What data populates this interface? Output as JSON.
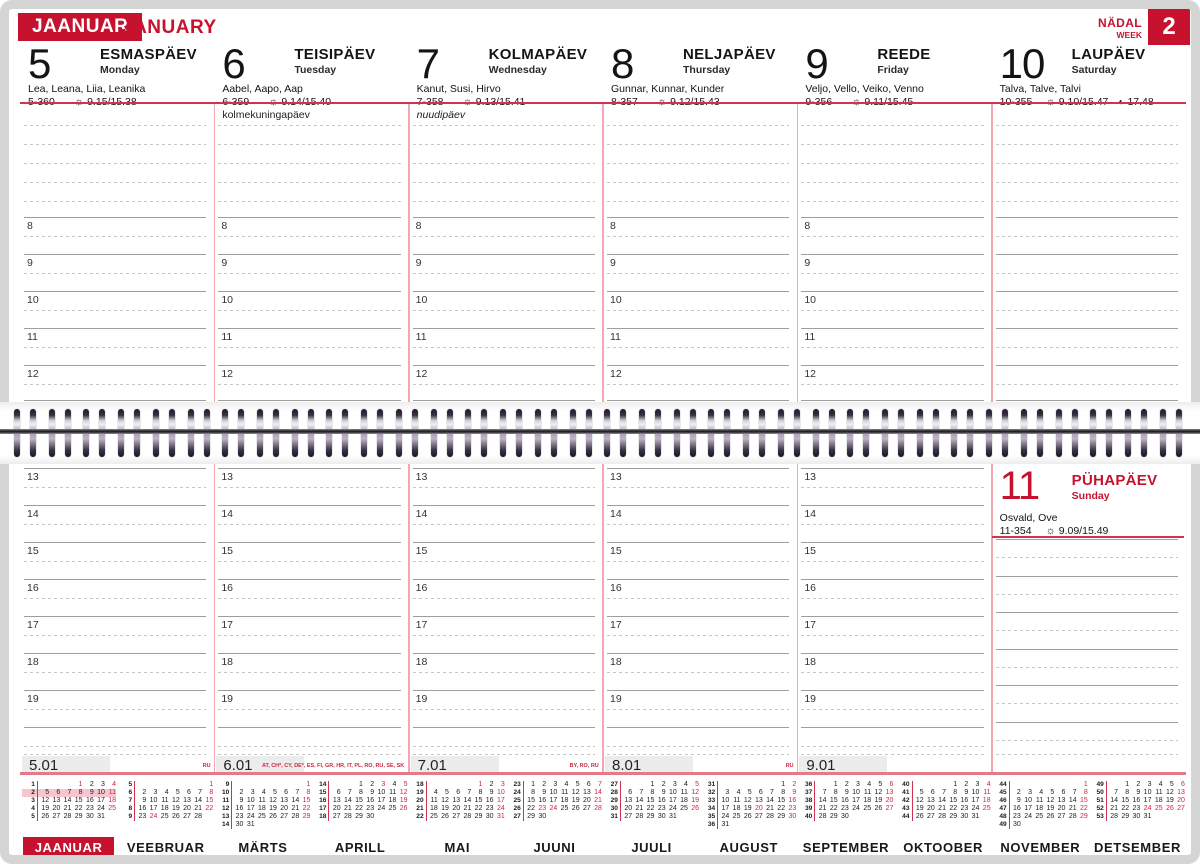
{
  "header": {
    "month_et": "JAANUAR",
    "month_en": "JANUARY",
    "week_label_et": "NÄDAL",
    "week_label_en": "WEEK",
    "week_number": "2"
  },
  "hours_top": [
    "8",
    "9",
    "10",
    "11",
    "12"
  ],
  "hours_bottom": [
    "13",
    "14",
    "15",
    "16",
    "17",
    "18",
    "19"
  ],
  "week_days": [
    {
      "num": "5",
      "name_et": "ESMASPÄEV",
      "name_en": "Monday",
      "namedays": "Lea, Leana, Liia, Leanika",
      "day_of_year": "5-360",
      "sun_times": "9.15/15.38"
    },
    {
      "num": "6",
      "name_et": "TEISIPÄEV",
      "name_en": "Tuesday",
      "namedays": "Aabel, Aapo, Aap",
      "day_of_year": "6-359",
      "sun_times": "9.14/15.40",
      "note": "kolmekuningapäev",
      "note_italic": false
    },
    {
      "num": "7",
      "name_et": "KOLMAPÄEV",
      "name_en": "Wednesday",
      "namedays": "Kanut, Susi, Hirvo",
      "day_of_year": "7-358",
      "sun_times": "9.13/15.41",
      "note": "nuudipäev",
      "note_italic": true
    },
    {
      "num": "8",
      "name_et": "NELJAPÄEV",
      "name_en": "Thursday",
      "namedays": "Gunnar, Kunnar, Kunder",
      "day_of_year": "8-357",
      "sun_times": "9.12/15.43"
    },
    {
      "num": "9",
      "name_et": "REEDE",
      "name_en": "Friday",
      "namedays": "Veljo, Vello, Veiko, Venno",
      "day_of_year": "9-356",
      "sun_times": "9.11/15.45"
    },
    {
      "num": "10",
      "name_et": "LAUPÄEV",
      "name_en": "Saturday",
      "namedays": "Talva, Talve, Talvi",
      "day_of_year": "10-355",
      "sun_times": "9.10/15.47",
      "moon_time": "17.48"
    }
  ],
  "sunday_day": {
    "num": "11",
    "name_et": "PÜHAPÄEV",
    "name_en": "Sunday",
    "namedays": "Osvald, Ove",
    "day_of_year": "11-354",
    "sun_times": "9.09/15.49"
  },
  "footer_entries": [
    {
      "date": "5.01",
      "flags": "RU"
    },
    {
      "date": "6.01",
      "flags": "AT, CH*, CY, DE*, ES, FI, GR, HR, IT, PL, RO, RU, SE, SK"
    },
    {
      "date": "7.01",
      "flags": "BY, RO, RU"
    },
    {
      "date": "8.01",
      "flags": "RU"
    },
    {
      "date": "9.01",
      "flags": ""
    }
  ],
  "mini_months": [
    {
      "name": "JAANUAR",
      "current": true,
      "highlight_week": "2",
      "holidays": [
        1
      ],
      "weeks": [
        {
          "n": "1",
          "days": [
            "",
            "",
            "",
            "1",
            "2",
            "3",
            "4"
          ]
        },
        {
          "n": "2",
          "days": [
            "5",
            "6",
            "7",
            "8",
            "9",
            "10",
            "11"
          ]
        },
        {
          "n": "3",
          "days": [
            "12",
            "13",
            "14",
            "15",
            "16",
            "17",
            "18"
          ]
        },
        {
          "n": "4",
          "days": [
            "19",
            "20",
            "21",
            "22",
            "23",
            "24",
            "25"
          ]
        },
        {
          "n": "5",
          "days": [
            "26",
            "27",
            "28",
            "29",
            "30",
            "31",
            ""
          ]
        }
      ]
    },
    {
      "name": "VEEBRUAR",
      "holidays": [
        24
      ],
      "weeks": [
        {
          "n": "5",
          "days": [
            "",
            "",
            "",
            "",
            "",
            "",
            "1"
          ]
        },
        {
          "n": "6",
          "days": [
            "2",
            "3",
            "4",
            "5",
            "6",
            "7",
            "8"
          ]
        },
        {
          "n": "7",
          "days": [
            "9",
            "10",
            "11",
            "12",
            "13",
            "14",
            "15"
          ]
        },
        {
          "n": "8",
          "days": [
            "16",
            "17",
            "18",
            "19",
            "20",
            "21",
            "22"
          ]
        },
        {
          "n": "9",
          "days": [
            "23",
            "24",
            "25",
            "26",
            "27",
            "28",
            ""
          ]
        }
      ]
    },
    {
      "name": "MÄRTS",
      "holidays": [],
      "weeks": [
        {
          "n": "9",
          "days": [
            "",
            "",
            "",
            "",
            "",
            "",
            "1"
          ]
        },
        {
          "n": "10",
          "days": [
            "2",
            "3",
            "4",
            "5",
            "6",
            "7",
            "8"
          ]
        },
        {
          "n": "11",
          "days": [
            "9",
            "10",
            "11",
            "12",
            "13",
            "14",
            "15"
          ]
        },
        {
          "n": "12",
          "days": [
            "16",
            "17",
            "18",
            "19",
            "20",
            "21",
            "22"
          ]
        },
        {
          "n": "13",
          "days": [
            "23",
            "24",
            "25",
            "26",
            "27",
            "28",
            "29"
          ]
        },
        {
          "n": "14",
          "days": [
            "30",
            "31",
            "",
            "",
            "",
            "",
            ""
          ]
        }
      ]
    },
    {
      "name": "APRILL",
      "holidays": [
        3
      ],
      "weeks": [
        {
          "n": "14",
          "days": [
            "",
            "",
            "1",
            "2",
            "3",
            "4",
            "5"
          ]
        },
        {
          "n": "15",
          "days": [
            "6",
            "7",
            "8",
            "9",
            "10",
            "11",
            "12"
          ]
        },
        {
          "n": "16",
          "days": [
            "13",
            "14",
            "15",
            "16",
            "17",
            "18",
            "19"
          ]
        },
        {
          "n": "17",
          "days": [
            "20",
            "21",
            "22",
            "23",
            "24",
            "25",
            "26"
          ]
        },
        {
          "n": "18",
          "days": [
            "27",
            "28",
            "29",
            "30",
            "",
            "",
            ""
          ]
        }
      ]
    },
    {
      "name": "MAI",
      "holidays": [
        1
      ],
      "weeks": [
        {
          "n": "18",
          "days": [
            "",
            "",
            "",
            "",
            "1",
            "2",
            "3"
          ]
        },
        {
          "n": "19",
          "days": [
            "4",
            "5",
            "6",
            "7",
            "8",
            "9",
            "10"
          ]
        },
        {
          "n": "20",
          "days": [
            "11",
            "12",
            "13",
            "14",
            "15",
            "16",
            "17"
          ]
        },
        {
          "n": "21",
          "days": [
            "18",
            "19",
            "20",
            "21",
            "22",
            "23",
            "24"
          ]
        },
        {
          "n": "22",
          "days": [
            "25",
            "26",
            "27",
            "28",
            "29",
            "30",
            "31"
          ]
        }
      ]
    },
    {
      "name": "JUUNI",
      "holidays": [
        23,
        24
      ],
      "weeks": [
        {
          "n": "23",
          "days": [
            "1",
            "2",
            "3",
            "4",
            "5",
            "6",
            "7"
          ]
        },
        {
          "n": "24",
          "days": [
            "8",
            "9",
            "10",
            "11",
            "12",
            "13",
            "14"
          ]
        },
        {
          "n": "25",
          "days": [
            "15",
            "16",
            "17",
            "18",
            "19",
            "20",
            "21"
          ]
        },
        {
          "n": "26",
          "days": [
            "22",
            "23",
            "24",
            "25",
            "26",
            "27",
            "28"
          ]
        },
        {
          "n": "27",
          "days": [
            "29",
            "30",
            "",
            "",
            "",
            "",
            ""
          ]
        }
      ]
    },
    {
      "name": "JUULI",
      "holidays": [],
      "weeks": [
        {
          "n": "27",
          "days": [
            "",
            "",
            "1",
            "2",
            "3",
            "4",
            "5"
          ]
        },
        {
          "n": "28",
          "days": [
            "6",
            "7",
            "8",
            "9",
            "10",
            "11",
            "12"
          ]
        },
        {
          "n": "29",
          "days": [
            "13",
            "14",
            "15",
            "16",
            "17",
            "18",
            "19"
          ]
        },
        {
          "n": "30",
          "days": [
            "20",
            "21",
            "22",
            "23",
            "24",
            "25",
            "26"
          ]
        },
        {
          "n": "31",
          "days": [
            "27",
            "28",
            "29",
            "30",
            "31",
            "",
            ""
          ]
        }
      ]
    },
    {
      "name": "AUGUST",
      "holidays": [
        20
      ],
      "weeks": [
        {
          "n": "31",
          "days": [
            "",
            "",
            "",
            "",
            "",
            "1",
            "2"
          ]
        },
        {
          "n": "32",
          "days": [
            "3",
            "4",
            "5",
            "6",
            "7",
            "8",
            "9"
          ]
        },
        {
          "n": "33",
          "days": [
            "10",
            "11",
            "12",
            "13",
            "14",
            "15",
            "16"
          ]
        },
        {
          "n": "34",
          "days": [
            "17",
            "18",
            "19",
            "20",
            "21",
            "22",
            "23"
          ]
        },
        {
          "n": "35",
          "days": [
            "24",
            "25",
            "26",
            "27",
            "28",
            "29",
            "30"
          ]
        },
        {
          "n": "36",
          "days": [
            "31",
            "",
            "",
            "",
            "",
            "",
            ""
          ]
        }
      ]
    },
    {
      "name": "SEPTEMBER",
      "holidays": [],
      "weeks": [
        {
          "n": "36",
          "days": [
            "",
            "1",
            "2",
            "3",
            "4",
            "5",
            "6"
          ]
        },
        {
          "n": "37",
          "days": [
            "7",
            "8",
            "9",
            "10",
            "11",
            "12",
            "13"
          ]
        },
        {
          "n": "38",
          "days": [
            "14",
            "15",
            "16",
            "17",
            "18",
            "19",
            "20"
          ]
        },
        {
          "n": "39",
          "days": [
            "21",
            "22",
            "23",
            "24",
            "25",
            "26",
            "27"
          ]
        },
        {
          "n": "40",
          "days": [
            "28",
            "29",
            "30",
            "",
            "",
            "",
            ""
          ]
        }
      ]
    },
    {
      "name": "OKTOOBER",
      "holidays": [],
      "weeks": [
        {
          "n": "40",
          "days": [
            "",
            "",
            "",
            "1",
            "2",
            "3",
            "4"
          ]
        },
        {
          "n": "41",
          "days": [
            "5",
            "6",
            "7",
            "8",
            "9",
            "10",
            "11"
          ]
        },
        {
          "n": "42",
          "days": [
            "12",
            "13",
            "14",
            "15",
            "16",
            "17",
            "18"
          ]
        },
        {
          "n": "43",
          "days": [
            "19",
            "20",
            "21",
            "22",
            "23",
            "24",
            "25"
          ]
        },
        {
          "n": "44",
          "days": [
            "26",
            "27",
            "28",
            "29",
            "30",
            "31",
            ""
          ]
        }
      ]
    },
    {
      "name": "NOVEMBER",
      "holidays": [],
      "weeks": [
        {
          "n": "44",
          "days": [
            "",
            "",
            "",
            "",
            "",
            "",
            "1"
          ]
        },
        {
          "n": "45",
          "days": [
            "2",
            "3",
            "4",
            "5",
            "6",
            "7",
            "8"
          ]
        },
        {
          "n": "46",
          "days": [
            "9",
            "10",
            "11",
            "12",
            "13",
            "14",
            "15"
          ]
        },
        {
          "n": "47",
          "days": [
            "16",
            "17",
            "18",
            "19",
            "20",
            "21",
            "22"
          ]
        },
        {
          "n": "48",
          "days": [
            "23",
            "24",
            "25",
            "26",
            "27",
            "28",
            "29"
          ]
        },
        {
          "n": "49",
          "days": [
            "30",
            "",
            "",
            "",
            "",
            "",
            ""
          ]
        }
      ]
    },
    {
      "name": "DETSEMBER",
      "holidays": [
        24,
        25,
        26
      ],
      "weeks": [
        {
          "n": "49",
          "days": [
            "",
            "1",
            "2",
            "3",
            "4",
            "5",
            "6"
          ]
        },
        {
          "n": "50",
          "days": [
            "7",
            "8",
            "9",
            "10",
            "11",
            "12",
            "13"
          ]
        },
        {
          "n": "51",
          "days": [
            "14",
            "15",
            "16",
            "17",
            "18",
            "19",
            "20"
          ]
        },
        {
          "n": "52",
          "days": [
            "21",
            "22",
            "23",
            "24",
            "25",
            "26",
            "27"
          ]
        },
        {
          "n": "53",
          "days": [
            "28",
            "29",
            "30",
            "31",
            "",
            "",
            ""
          ]
        }
      ]
    }
  ],
  "colors": {
    "accent": "#c7122f",
    "pink_line": "#f2a7b3",
    "highlight": "#f7c5cd",
    "mini_red": "#cf2440"
  }
}
